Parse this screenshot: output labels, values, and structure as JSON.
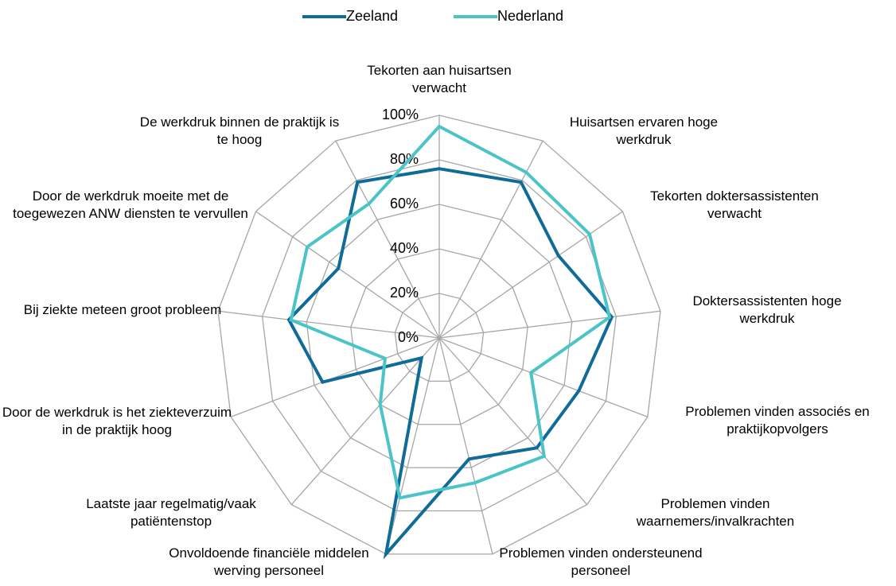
{
  "chart_data": {
    "type": "radar",
    "categories": [
      "Tekorten aan huisartsen verwacht",
      "Huisartsen ervaren hoge werkdruk",
      "Tekorten doktersassistenten verwacht",
      "Doktersassistenten hoge werkdruk",
      "Problemen vinden associés en praktijkopvolgers",
      "Problemen vinden waarnemers/invalkrachten",
      "Problemen vinden ondersteunend personeel",
      "Onvoldoende financiële middelen werving personeel",
      "Laatste jaar regelmatig/vaak patiëntenstop",
      "Door de werkdruk is het ziekteverzuim in de praktijk hoog",
      "Bij ziekte meteen groot probleem",
      "Door de werkdruk moeite met de toegewezen ANW diensten te vervullen",
      "De werkdruk binnen de praktijk is te hoog"
    ],
    "series": [
      {
        "name": "Zeeland",
        "color": "#0f6b97",
        "values": [
          76,
          79,
          65,
          78,
          67,
          66,
          56,
          100,
          12,
          56,
          68,
          55,
          79
        ]
      },
      {
        "name": "Nederland",
        "color": "#4bc4c8",
        "values": [
          95,
          84,
          82,
          77,
          44,
          71,
          67,
          74,
          40,
          26,
          67,
          72,
          68
        ]
      }
    ],
    "ylim": [
      0,
      100
    ],
    "yticks": [
      {
        "value": 0,
        "label": "0%"
      },
      {
        "value": 20,
        "label": "20%"
      },
      {
        "value": 40,
        "label": "40%"
      },
      {
        "value": 60,
        "label": "60%"
      },
      {
        "value": 80,
        "label": "80%"
      },
      {
        "value": 100,
        "label": "100%"
      }
    ],
    "grid": true,
    "legend": "top"
  }
}
